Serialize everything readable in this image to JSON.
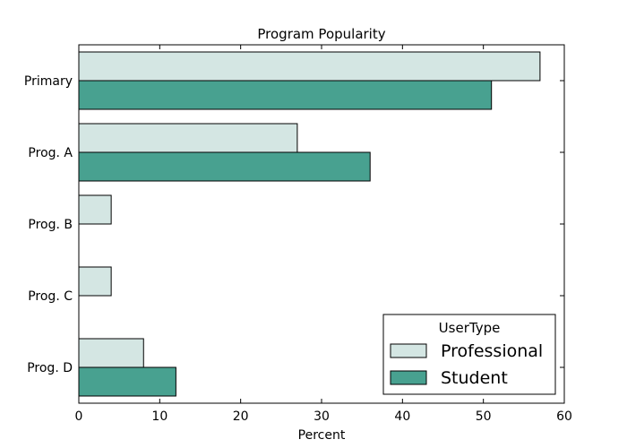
{
  "chart_data": {
    "type": "bar",
    "orientation": "horizontal",
    "title": "Program Popularity",
    "xlabel": "Percent",
    "ylabel": "",
    "xlim": [
      0,
      60
    ],
    "x_ticks": [
      0,
      10,
      20,
      30,
      40,
      50,
      60
    ],
    "categories": [
      "Primary",
      "Prog. A",
      "Prog. B",
      "Prog. C",
      "Prog. D"
    ],
    "series": [
      {
        "name": "Professional",
        "values": [
          57,
          27,
          4,
          4,
          8
        ],
        "color": "#d4e6e3"
      },
      {
        "name": "Student",
        "values": [
          51,
          36,
          0,
          0,
          12
        ],
        "color": "#48a190"
      }
    ],
    "legend": {
      "title": "UserType",
      "position": "bottom-right"
    },
    "grid": false
  }
}
